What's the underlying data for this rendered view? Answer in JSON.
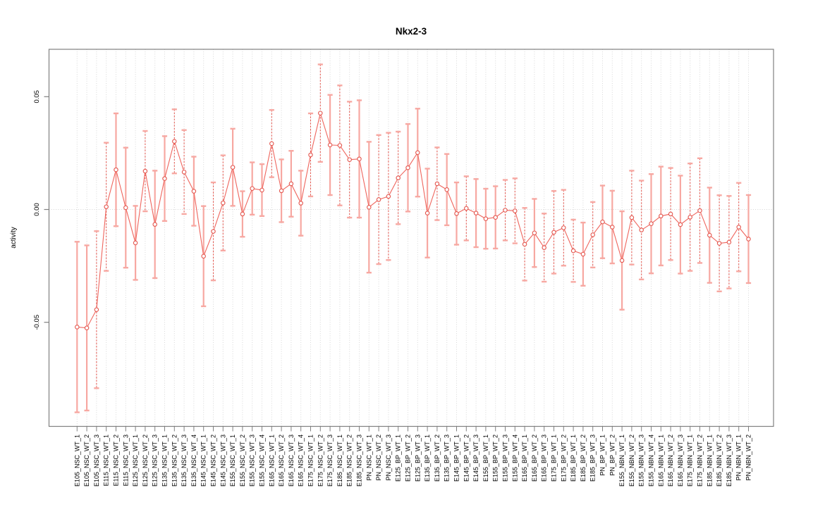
{
  "chart_data": {
    "type": "scatter",
    "title": "Nkx2-3",
    "xlabel": "",
    "ylabel": "activity",
    "ylim": [
      -0.096,
      0.071
    ],
    "yticks": [
      -0.05,
      0.0,
      0.05
    ],
    "ytick_labels": [
      "-0.05",
      "0.00",
      "0.05"
    ],
    "grid": "vertical dotted gridline per category; horizontal dotted line at y=0",
    "legend": "none",
    "marker": "open-circle",
    "error_bars": "symmetric, capped",
    "categories": [
      "E105_NSC_WT_1",
      "E105_NSC_WT_2",
      "E105_NSC_WT_3",
      "E115_NSC_WT_1",
      "E115_NSC_WT_2",
      "E115_NSC_WT_3",
      "E125_NSC_WT_1",
      "E125_NSC_WT_2",
      "E125_NSC_WT_3",
      "E135_NSC_WT_1",
      "E135_NSC_WT_2",
      "E135_NSC_WT_3",
      "E135_NSC_WT_4",
      "E145_NSC_WT_1",
      "E145_NSC_WT_2",
      "E145_NSC_WT_3",
      "E155_NSC_WT_1",
      "E155_NSC_WT_2",
      "E155_NSC_WT_3",
      "E155_NSC_WT_4",
      "E165_NSC_WT_1",
      "E165_NSC_WT_2",
      "E165_NSC_WT_3",
      "E165_NSC_WT_4",
      "E175_NSC_WT_1",
      "E175_NSC_WT_2",
      "E175_NSC_WT_3",
      "E185_NSC_WT_1",
      "E185_NSC_WT_2",
      "E185_NSC_WT_3",
      "PN_NSC_WT_1",
      "PN_NSC_WT_2",
      "PN_NSC_WT_3",
      "E125_BP_WT_1",
      "E125_BP_WT_2",
      "E125_BP_WT_3",
      "E135_BP_WT_1",
      "E135_BP_WT_2",
      "E135_BP_WT_3",
      "E145_BP_WT_1",
      "E145_BP_WT_2",
      "E145_BP_WT_3",
      "E155_BP_WT_1",
      "E155_BP_WT_2",
      "E155_BP_WT_3",
      "E155_BP_WT_4",
      "E165_BP_WT_1",
      "E165_BP_WT_2",
      "E165_BP_WT_3",
      "E175_BP_WT_1",
      "E175_BP_WT_2",
      "E185_BP_WT_1",
      "E185_BP_WT_2",
      "E185_BP_WT_3",
      "PN_BP_WT_1",
      "PN_BP_WT_2",
      "E155_NBN_WT_1",
      "E155_NBN_WT_2",
      "E155_NBN_WT_3",
      "E155_NBN_WT_4",
      "E165_NBN_WT_1",
      "E165_NBN_WT_2",
      "E165_NBN_WT_3",
      "E175_NBN_WT_1",
      "E175_NBN_WT_2",
      "E185_NBN_WT_1",
      "E185_NBN_WT_2",
      "E185_NBN_WT_3",
      "PN_NBN_WT_1",
      "PN_NBN_WT_2"
    ],
    "series": [
      {
        "name": "activity",
        "values": [
          -0.0521,
          -0.0525,
          -0.0444,
          0.0012,
          0.0176,
          0.0008,
          -0.0148,
          0.017,
          -0.0066,
          0.0137,
          0.0302,
          0.0166,
          0.0081,
          -0.0207,
          -0.0097,
          0.0029,
          0.0187,
          -0.002,
          0.0093,
          0.0086,
          0.0292,
          0.0083,
          0.0114,
          0.0028,
          0.0242,
          0.0427,
          0.0286,
          0.0284,
          0.0221,
          0.0224,
          0.001,
          0.0044,
          0.0058,
          0.014,
          0.0185,
          0.0252,
          -0.0016,
          0.0114,
          0.0088,
          -0.0018,
          0.0005,
          -0.0016,
          -0.0041,
          -0.0035,
          -0.0003,
          -0.0006,
          -0.0154,
          -0.0104,
          -0.0169,
          -0.0101,
          -0.0081,
          -0.0183,
          -0.0198,
          -0.0112,
          -0.0055,
          -0.0078,
          -0.0226,
          -0.0036,
          -0.0091,
          -0.0063,
          -0.0029,
          -0.002,
          -0.0067,
          -0.0034,
          -0.0005,
          -0.0114,
          -0.015,
          -0.0145,
          -0.0078,
          -0.0131
        ],
        "errors": [
          0.0378,
          0.0366,
          0.0348,
          0.0284,
          0.025,
          0.0266,
          0.0164,
          0.0178,
          0.0238,
          0.0188,
          0.0142,
          0.0186,
          0.0153,
          0.0222,
          0.0217,
          0.0211,
          0.0171,
          0.0101,
          0.0116,
          0.0115,
          0.0149,
          0.0139,
          0.0146,
          0.0144,
          0.0184,
          0.0216,
          0.0222,
          0.0266,
          0.0257,
          0.026,
          0.029,
          0.0286,
          0.0282,
          0.0205,
          0.0194,
          0.0195,
          0.0197,
          0.0161,
          0.0158,
          0.0138,
          0.0142,
          0.0151,
          0.0133,
          0.0138,
          0.0134,
          0.0144,
          0.0161,
          0.0151,
          0.0151,
          0.0183,
          0.0168,
          0.0138,
          0.014,
          0.0145,
          0.0161,
          0.0161,
          0.0218,
          0.0208,
          0.0219,
          0.022,
          0.0219,
          0.0204,
          0.0217,
          0.0238,
          0.0232,
          0.0211,
          0.0213,
          0.0205,
          0.0196,
          0.0195
        ],
        "error_bar_styles": [
          "solid",
          "solid",
          "dashed",
          "dashed",
          "solid",
          "solid",
          "solid",
          "dashed",
          "solid",
          "solid",
          "dashed",
          "dashed",
          "solid",
          "solid",
          "dashed",
          "dashed",
          "solid",
          "solid",
          "solid",
          "solid",
          "dashed",
          "solid",
          "solid",
          "solid",
          "dashed",
          "dashed",
          "solid",
          "dashed",
          "dashed",
          "solid",
          "solid",
          "dashed",
          "dashed",
          "dashed",
          "solid",
          "solid",
          "solid",
          "dashed",
          "solid",
          "solid",
          "dashed",
          "solid",
          "solid",
          "solid",
          "dashed",
          "dashed",
          "dashed",
          "solid",
          "dashed",
          "dashed",
          "dashed",
          "dashed",
          "solid",
          "dashed",
          "solid",
          "solid",
          "solid",
          "dashed",
          "dashed",
          "solid",
          "solid",
          "dashed",
          "solid",
          "dashed",
          "dashed",
          "solid",
          "dashed",
          "dashed",
          "dashed",
          "solid"
        ]
      }
    ],
    "colors": {
      "marker_stroke": "#e4564e",
      "connect_line": "#ef655d",
      "errorbar_solid": "#f7a8a2",
      "errorbar_dashed": "#e4564e",
      "errorbar_cap": "#f7a8a2",
      "gridline": "#d8d8d8",
      "zero_line": "#d4d4d4",
      "frame": "#808080",
      "text": "#000000",
      "background": "#ffffff"
    }
  }
}
